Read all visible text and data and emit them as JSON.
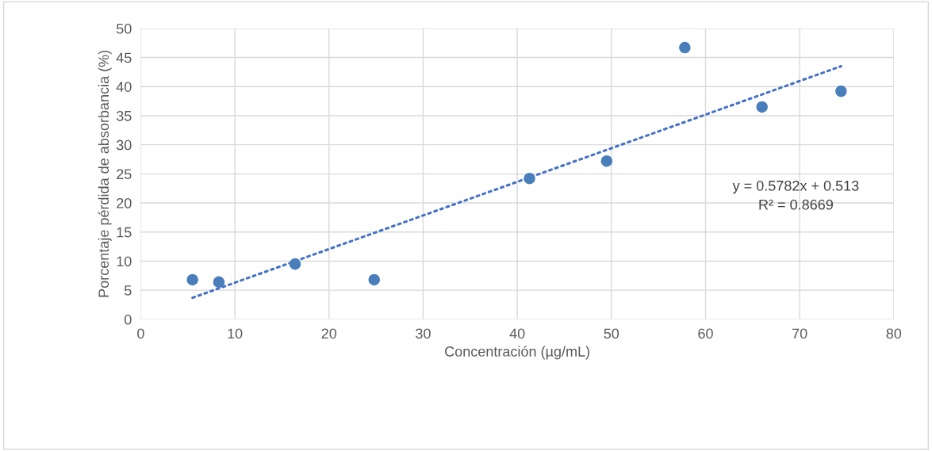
{
  "chart_data": {
    "type": "scatter",
    "xlabel": "Concentración (µg/mL)",
    "ylabel": "Porcentaje pérdida de absorbancia (%)",
    "x": [
      5.5,
      8.3,
      16.4,
      24.8,
      41.3,
      49.5,
      57.8,
      66.0,
      74.4
    ],
    "series": [
      {
        "color": "#4a7ebb",
        "values": [
          6.8,
          6.4,
          9.5,
          6.8,
          24.2,
          27.2,
          46.7,
          36.5,
          39.2
        ],
        "marker": "circle"
      },
      {
        "type": "line",
        "color": "#4472c4",
        "x": [
          5.5,
          74.4
        ],
        "values": [
          3.7,
          43.5
        ],
        "line_style": "dotted",
        "marker": "none"
      }
    ],
    "annotations": [
      "y = 0.5782x + 0.513",
      "R² = 0.8669"
    ],
    "xlim": [
      0,
      80
    ],
    "xticks": [
      0,
      10,
      20,
      30,
      40,
      50,
      60,
      70,
      80
    ],
    "ylim": [
      0,
      50
    ],
    "yticks": [
      0,
      5,
      10,
      15,
      20,
      25,
      30,
      35,
      40,
      45,
      50
    ],
    "grid": true,
    "legend": false
  }
}
